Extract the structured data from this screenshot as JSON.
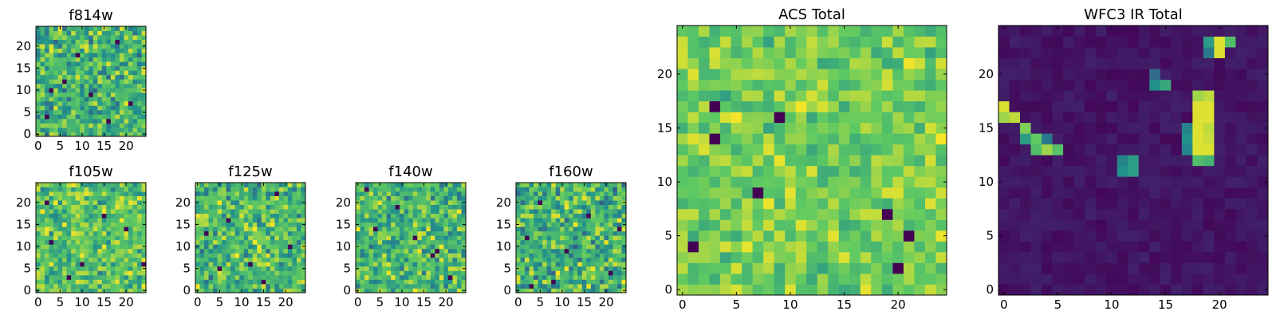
{
  "figure": {
    "colormap": "viridis",
    "colormap_stops": [
      "#440154",
      "#3b528b",
      "#21918c",
      "#5ec962",
      "#fde725"
    ]
  },
  "chart_data": [
    {
      "type": "heatmap",
      "id": "f814w",
      "title": "f814w",
      "xlabel": "",
      "ylabel": "",
      "grid_size": [
        25,
        25
      ],
      "xlim": [
        -0.5,
        24.5
      ],
      "ylim": [
        -0.5,
        24.5
      ],
      "xticks": [
        0,
        5,
        10,
        15,
        20
      ],
      "yticks": [
        0,
        5,
        10,
        15,
        20
      ],
      "colormap": "viridis",
      "value_range": [
        0,
        1
      ],
      "pattern": "noise",
      "typical_level": 0.65,
      "spread": 0.35,
      "hot_pixels": [],
      "dark_pixels": [
        [
          2,
          4
        ],
        [
          21,
          7
        ],
        [
          16,
          3
        ],
        [
          6,
          12
        ],
        [
          9,
          18
        ],
        [
          12,
          9
        ],
        [
          18,
          21
        ],
        [
          3,
          10
        ]
      ],
      "grid": false
    },
    {
      "type": "heatmap",
      "id": "f105w",
      "title": "f105w",
      "xlabel": "",
      "ylabel": "",
      "grid_size": [
        25,
        25
      ],
      "xlim": [
        -0.5,
        24.5
      ],
      "ylim": [
        -0.5,
        24.5
      ],
      "xticks": [
        0,
        5,
        10,
        15,
        20
      ],
      "yticks": [
        0,
        5,
        10,
        15,
        20
      ],
      "colormap": "viridis",
      "value_range": [
        0,
        1
      ],
      "pattern": "noise",
      "typical_level": 0.72,
      "spread": 0.3,
      "hot_pixels": [],
      "dark_pixels": [
        [
          3,
          11
        ],
        [
          10,
          6
        ],
        [
          20,
          14
        ],
        [
          15,
          17
        ],
        [
          24,
          6
        ],
        [
          7,
          3
        ],
        [
          2,
          20
        ]
      ],
      "grid": false
    },
    {
      "type": "heatmap",
      "id": "f125w",
      "title": "f125w",
      "xlabel": "",
      "ylabel": "",
      "grid_size": [
        25,
        25
      ],
      "xlim": [
        -0.5,
        24.5
      ],
      "ylim": [
        -0.5,
        24.5
      ],
      "xticks": [
        0,
        5,
        10,
        15,
        20
      ],
      "yticks": [
        0,
        5,
        10,
        15,
        20
      ],
      "colormap": "viridis",
      "value_range": [
        0,
        1
      ],
      "pattern": "noise",
      "typical_level": 0.68,
      "spread": 0.35,
      "hot_pixels": [],
      "dark_pixels": [
        [
          12,
          6
        ],
        [
          2,
          13
        ],
        [
          18,
          22
        ],
        [
          7,
          16
        ],
        [
          15,
          2
        ],
        [
          21,
          10
        ],
        [
          5,
          5
        ]
      ],
      "grid": false
    },
    {
      "type": "heatmap",
      "id": "f140w",
      "title": "f140w",
      "xlabel": "",
      "ylabel": "",
      "grid_size": [
        25,
        25
      ],
      "xlim": [
        -0.5,
        24.5
      ],
      "ylim": [
        -0.5,
        24.5
      ],
      "xticks": [
        0,
        5,
        10,
        15,
        20
      ],
      "yticks": [
        0,
        5,
        10,
        15,
        20
      ],
      "colormap": "viridis",
      "value_range": [
        0,
        1
      ],
      "pattern": "noise",
      "typical_level": 0.68,
      "spread": 0.35,
      "hot_pixels": [],
      "dark_pixels": [
        [
          17,
          8
        ],
        [
          18,
          9
        ],
        [
          9,
          19
        ],
        [
          4,
          14
        ],
        [
          21,
          3
        ],
        [
          13,
          12
        ],
        [
          2,
          23
        ]
      ],
      "grid": false
    },
    {
      "type": "heatmap",
      "id": "f160w",
      "title": "f160w",
      "xlabel": "",
      "ylabel": "",
      "grid_size": [
        25,
        25
      ],
      "xlim": [
        -0.5,
        24.5
      ],
      "ylim": [
        -0.5,
        24.5
      ],
      "xticks": [
        0,
        5,
        10,
        15,
        20
      ],
      "yticks": [
        0,
        5,
        10,
        15,
        20
      ],
      "colormap": "viridis",
      "value_range": [
        0,
        1
      ],
      "pattern": "noise",
      "typical_level": 0.66,
      "spread": 0.38,
      "hot_pixels": [],
      "dark_pixels": [
        [
          5,
          20
        ],
        [
          2,
          12
        ],
        [
          21,
          4
        ],
        [
          11,
          9
        ],
        [
          16,
          17
        ],
        [
          8,
          2
        ],
        [
          23,
          14
        ],
        [
          3,
          1
        ]
      ],
      "grid": false
    },
    {
      "type": "heatmap",
      "id": "acs_total",
      "title": "ACS Total",
      "xlabel": "",
      "ylabel": "",
      "grid_size": [
        25,
        25
      ],
      "xlim": [
        -0.5,
        24.5
      ],
      "ylim": [
        -0.5,
        24.5
      ],
      "xticks": [
        0,
        5,
        10,
        15,
        20
      ],
      "yticks": [
        0,
        5,
        10,
        15,
        20
      ],
      "colormap": "viridis",
      "value_range": [
        0,
        1
      ],
      "pattern": "noise",
      "typical_level": 0.78,
      "spread": 0.22,
      "hot_pixels": [],
      "dark_pixels": [
        [
          3,
          17
        ],
        [
          9,
          16
        ],
        [
          3,
          14
        ],
        [
          1,
          4
        ],
        [
          19,
          7
        ],
        [
          20,
          2
        ],
        [
          7,
          9
        ],
        [
          21,
          5
        ]
      ],
      "grid": false
    },
    {
      "type": "heatmap",
      "id": "wfc3_ir_total",
      "title": "WFC3 IR Total",
      "xlabel": "",
      "ylabel": "",
      "grid_size": [
        25,
        25
      ],
      "xlim": [
        -0.5,
        24.5
      ],
      "ylim": [
        -0.5,
        24.5
      ],
      "xticks": [
        0,
        5,
        10,
        15,
        20
      ],
      "yticks": [
        0,
        5,
        10,
        15,
        20
      ],
      "colormap": "viridis",
      "value_range": [
        0,
        1
      ],
      "pattern": "dark_background",
      "typical_level": 0.06,
      "spread": 0.08,
      "hot_pixels": [
        [
          0,
          17,
          0.95
        ],
        [
          0,
          16,
          0.85
        ],
        [
          1,
          16,
          0.9
        ],
        [
          2,
          15,
          0.8
        ],
        [
          3,
          14,
          0.75
        ],
        [
          3,
          13,
          0.7
        ],
        [
          4,
          13,
          0.85
        ],
        [
          5,
          13,
          0.72
        ],
        [
          2,
          14,
          0.55
        ],
        [
          4,
          14,
          0.4
        ],
        [
          18,
          17,
          0.95
        ],
        [
          18,
          18,
          0.85
        ],
        [
          18,
          16,
          0.95
        ],
        [
          18,
          15,
          0.95
        ],
        [
          18,
          14,
          0.95
        ],
        [
          18,
          13,
          0.95
        ],
        [
          18,
          12,
          0.7
        ],
        [
          19,
          18,
          0.9
        ],
        [
          19,
          17,
          0.95
        ],
        [
          19,
          16,
          0.95
        ],
        [
          19,
          15,
          0.9
        ],
        [
          19,
          14,
          0.92
        ],
        [
          19,
          13,
          0.95
        ],
        [
          19,
          12,
          0.65
        ],
        [
          17,
          15,
          0.45
        ],
        [
          17,
          14,
          0.5
        ],
        [
          17,
          13,
          0.45
        ],
        [
          20,
          23,
          0.95
        ],
        [
          20,
          22,
          0.95
        ],
        [
          21,
          23,
          0.7
        ],
        [
          19,
          23,
          0.55
        ],
        [
          19,
          22,
          0.4
        ],
        [
          14,
          19,
          0.5
        ],
        [
          15,
          19,
          0.6
        ],
        [
          14,
          20,
          0.35
        ],
        [
          11,
          11,
          0.5
        ],
        [
          12,
          11,
          0.55
        ],
        [
          11,
          12,
          0.45
        ],
        [
          12,
          12,
          0.55
        ]
      ],
      "dark_pixels": [],
      "grid": false
    }
  ]
}
